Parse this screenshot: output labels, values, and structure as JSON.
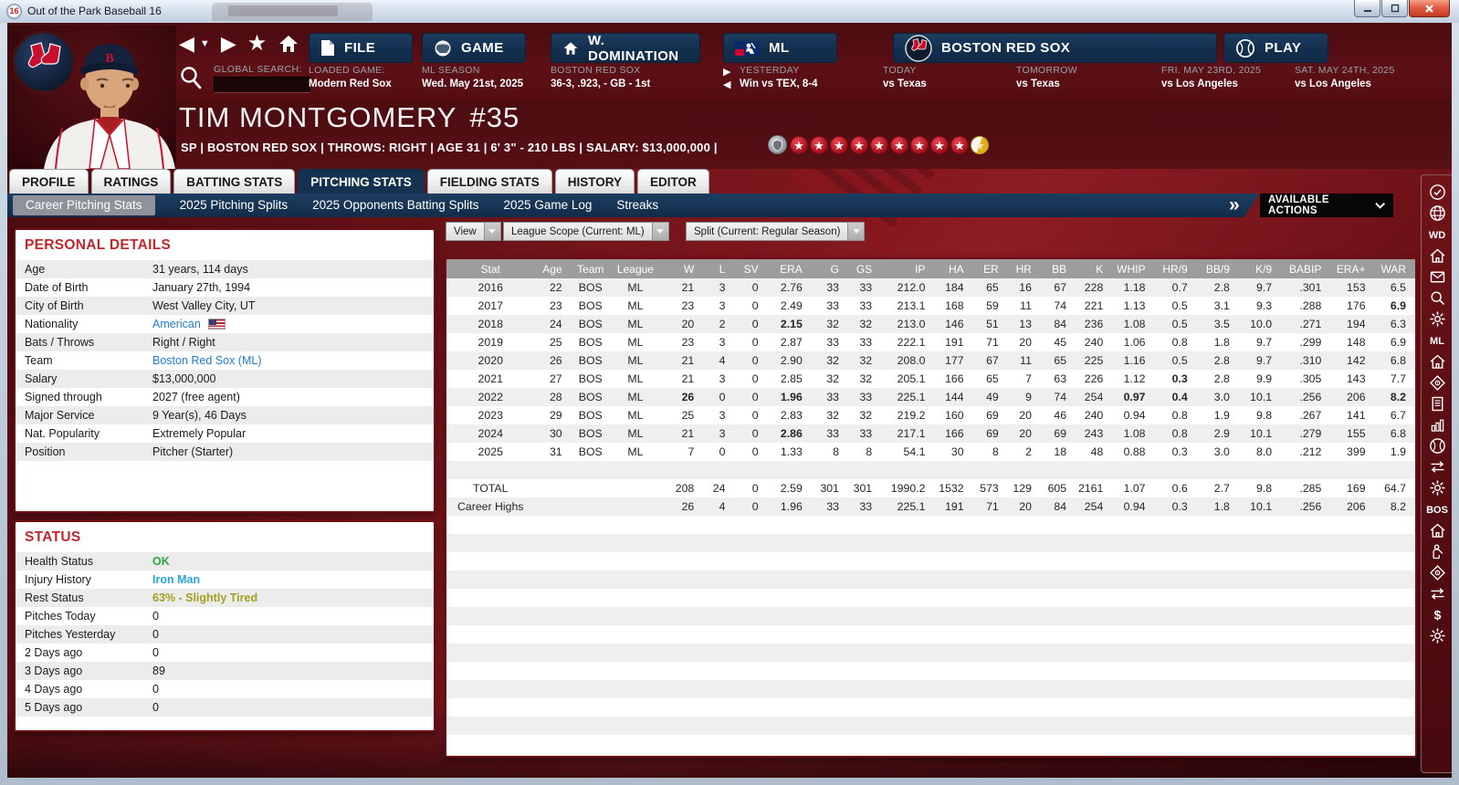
{
  "window": {
    "title": "Out of the Park Baseball 16",
    "app_icon_text": "16"
  },
  "colors": {
    "background_maroon": "#5c1016",
    "menu_navy": "#132f4e",
    "panel_title_red": "#c0272d",
    "stat_highlight_red": "#a01c20",
    "link_blue": "#1e7bd0",
    "ok_green": "#2ea440",
    "injury_blue": "#2aa5d8",
    "tired_olive": "#a3a11e",
    "star_red": "#a50f1b",
    "star_gold": "#e2ae17"
  },
  "icons": {
    "back": "◀",
    "dropdown": "▼",
    "forward": "▶",
    "favorite": "★",
    "star": "★",
    "double_chevron": "»"
  },
  "nav": {
    "global_search_label": "GLOBAL SEARCH:",
    "search_value": "",
    "menus": {
      "file": {
        "label": "FILE",
        "sub_label": "LOADED GAME:",
        "sub_value": "Modern Red Sox"
      },
      "game": {
        "label": "GAME",
        "sub_label": "ML SEASON",
        "sub_value": "Wed. May 21st, 2025"
      },
      "domination": {
        "label": "W. DOMINATION",
        "sub_label": "BOSTON RED SOX",
        "sub_value": "36-3, .923, - GB - 1st"
      },
      "ml": {
        "label": "ML",
        "sub_label": "YESTERDAY",
        "sub_value": "Win vs TEX, 8-4"
      },
      "team": {
        "label": "BOSTON RED SOX",
        "today_label": "TODAY",
        "today_value": "vs Texas",
        "tomorrow_label": "TOMORROW",
        "tomorrow_value": "vs Texas"
      },
      "play": {
        "label": "PLAY"
      }
    },
    "schedule": [
      {
        "label": "FRI. MAY 23RD, 2025",
        "value": "vs Los Angeles"
      },
      {
        "label": "SAT. MAY 24TH, 2025",
        "value": "vs Los Angeles"
      }
    ]
  },
  "player": {
    "name": "TIM MONTGOMERY",
    "number": "#35",
    "subtitle": "SP | BOSTON RED SOX  |  THROWS: RIGHT  |  AGE 31  |  6' 3\" - 210 LBS  |  SALARY: $13,000,000  |",
    "star_count": 9,
    "has_half_star": true
  },
  "tabs": [
    "PROFILE",
    "RATINGS",
    "BATTING STATS",
    "PITCHING STATS",
    "FIELDING STATS",
    "HISTORY",
    "EDITOR"
  ],
  "active_tab": "PITCHING STATS",
  "subtabs": [
    "Career Pitching Stats",
    "2025 Pitching Splits",
    "2025 Opponents Batting Splits",
    "2025 Game Log",
    "Streaks"
  ],
  "active_subtab": "Career Pitching Stats",
  "available_actions_label": "AVAILABLE ACTIONS",
  "filters": {
    "view_label": "View",
    "league_scope_label": "League Scope  (Current: ML)",
    "split_label": "Split  (Current: Regular Season)"
  },
  "personal_details": {
    "title": "PERSONAL DETAILS",
    "rows": [
      {
        "label": "Age",
        "value": "31 years, 114 days"
      },
      {
        "label": "Date of Birth",
        "value": "January 27th, 1994"
      },
      {
        "label": "City of Birth",
        "value": "West Valley City, UT"
      },
      {
        "label": "Nationality",
        "value": "American",
        "style": "link",
        "flag": true
      },
      {
        "label": "Bats / Throws",
        "value": "Right / Right"
      },
      {
        "label": "Team",
        "value": "Boston Red Sox (ML)",
        "style": "link"
      },
      {
        "label": "Salary",
        "value": "$13,000,000"
      },
      {
        "label": "Signed through",
        "value": "2027 (free agent)"
      },
      {
        "label": "Major Service",
        "value": "9 Year(s), 46 Days"
      },
      {
        "label": "Nat. Popularity",
        "value": "Extremely Popular"
      },
      {
        "label": "Position",
        "value": "Pitcher (Starter)"
      }
    ]
  },
  "status": {
    "title": "STATUS",
    "rows": [
      {
        "label": "Health Status",
        "value": "OK",
        "style": "green"
      },
      {
        "label": "Injury History",
        "value": "Iron Man",
        "style": "blue"
      },
      {
        "label": "Rest Status",
        "value": "63% - Slightly Tired",
        "style": "olive"
      },
      {
        "label": "Pitches Today",
        "value": "0"
      },
      {
        "label": "Pitches Yesterday",
        "value": "0"
      },
      {
        "label": "2 Days ago",
        "value": "0"
      },
      {
        "label": "3 Days ago",
        "value": "89"
      },
      {
        "label": "4 Days ago",
        "value": "0"
      },
      {
        "label": "5 Days ago",
        "value": "0"
      }
    ]
  },
  "stats_table": {
    "columns": [
      "Stat",
      "Age",
      "Team",
      "League",
      "W",
      "L",
      "SV",
      "ERA",
      "G",
      "GS",
      "IP",
      "HA",
      "ER",
      "HR",
      "BB",
      "K",
      "WHIP",
      "HR/9",
      "BB/9",
      "K/9",
      "BABIP",
      "ERA+",
      "WAR"
    ],
    "rows": [
      {
        "cells": [
          "2016",
          "22",
          "BOS",
          "ML",
          "21",
          "3",
          "0",
          "2.76",
          "33",
          "33",
          "212.0",
          "184",
          "65",
          "16",
          "67",
          "228",
          "1.18",
          "0.7",
          "2.8",
          "9.7",
          ".301",
          "153",
          "6.5"
        ],
        "red": []
      },
      {
        "cells": [
          "2017",
          "23",
          "BOS",
          "ML",
          "23",
          "3",
          "0",
          "2.49",
          "33",
          "33",
          "213.1",
          "168",
          "59",
          "11",
          "74",
          "221",
          "1.13",
          "0.5",
          "3.1",
          "9.3",
          ".288",
          "176",
          "6.9"
        ],
        "red": [
          22
        ]
      },
      {
        "cells": [
          "2018",
          "24",
          "BOS",
          "ML",
          "20",
          "2",
          "0",
          "2.15",
          "32",
          "32",
          "213.0",
          "146",
          "51",
          "13",
          "84",
          "236",
          "1.08",
          "0.5",
          "3.5",
          "10.0",
          ".271",
          "194",
          "6.3"
        ],
        "red": [
          7
        ]
      },
      {
        "cells": [
          "2019",
          "25",
          "BOS",
          "ML",
          "23",
          "3",
          "0",
          "2.87",
          "33",
          "33",
          "222.1",
          "191",
          "71",
          "20",
          "45",
          "240",
          "1.06",
          "0.8",
          "1.8",
          "9.7",
          ".299",
          "148",
          "6.9"
        ],
        "red": []
      },
      {
        "cells": [
          "2020",
          "26",
          "BOS",
          "ML",
          "21",
          "4",
          "0",
          "2.90",
          "32",
          "32",
          "208.0",
          "177",
          "67",
          "11",
          "65",
          "225",
          "1.16",
          "0.5",
          "2.8",
          "9.7",
          ".310",
          "142",
          "6.8"
        ],
        "red": []
      },
      {
        "cells": [
          "2021",
          "27",
          "BOS",
          "ML",
          "21",
          "3",
          "0",
          "2.85",
          "32",
          "32",
          "205.1",
          "166",
          "65",
          "7",
          "63",
          "226",
          "1.12",
          "0.3",
          "2.8",
          "9.9",
          ".305",
          "143",
          "7.7"
        ],
        "red": [
          17
        ]
      },
      {
        "cells": [
          "2022",
          "28",
          "BOS",
          "ML",
          "26",
          "0",
          "0",
          "1.96",
          "33",
          "33",
          "225.1",
          "144",
          "49",
          "9",
          "74",
          "254",
          "0.97",
          "0.4",
          "3.0",
          "10.1",
          ".256",
          "206",
          "8.2"
        ],
        "red": [
          4,
          7,
          16,
          17,
          22
        ]
      },
      {
        "cells": [
          "2023",
          "29",
          "BOS",
          "ML",
          "25",
          "3",
          "0",
          "2.83",
          "32",
          "32",
          "219.2",
          "160",
          "69",
          "20",
          "46",
          "240",
          "0.94",
          "0.8",
          "1.9",
          "9.8",
          ".267",
          "141",
          "6.7"
        ],
        "red": []
      },
      {
        "cells": [
          "2024",
          "30",
          "BOS",
          "ML",
          "21",
          "3",
          "0",
          "2.86",
          "33",
          "33",
          "217.1",
          "166",
          "69",
          "20",
          "69",
          "243",
          "1.08",
          "0.8",
          "2.9",
          "10.1",
          ".279",
          "155",
          "6.8"
        ],
        "red": [
          7
        ]
      },
      {
        "cells": [
          "2025",
          "31",
          "BOS",
          "ML",
          "7",
          "0",
          "0",
          "1.33",
          "8",
          "8",
          "54.1",
          "30",
          "8",
          "2",
          "18",
          "48",
          "0.88",
          "0.3",
          "3.0",
          "8.0",
          ".212",
          "399",
          "1.9"
        ],
        "red": []
      },
      {
        "spacer": true
      },
      {
        "cells": [
          "TOTAL",
          "",
          "",
          "",
          "208",
          "24",
          "0",
          "2.59",
          "301",
          "301",
          "1990.2",
          "1532",
          "573",
          "129",
          "605",
          "2161",
          "1.07",
          "0.6",
          "2.7",
          "9.8",
          ".285",
          "169",
          "64.7"
        ],
        "red": []
      },
      {
        "cells": [
          "Career Highs",
          "",
          "",
          "",
          "26",
          "4",
          "0",
          "1.96",
          "33",
          "33",
          "225.1",
          "191",
          "71",
          "20",
          "84",
          "254",
          "0.94",
          "0.3",
          "1.8",
          "10.1",
          ".256",
          "206",
          "8.2"
        ],
        "red": []
      }
    ]
  },
  "sidebar": {
    "labels": [
      "WD",
      "ML",
      "BOS"
    ]
  }
}
